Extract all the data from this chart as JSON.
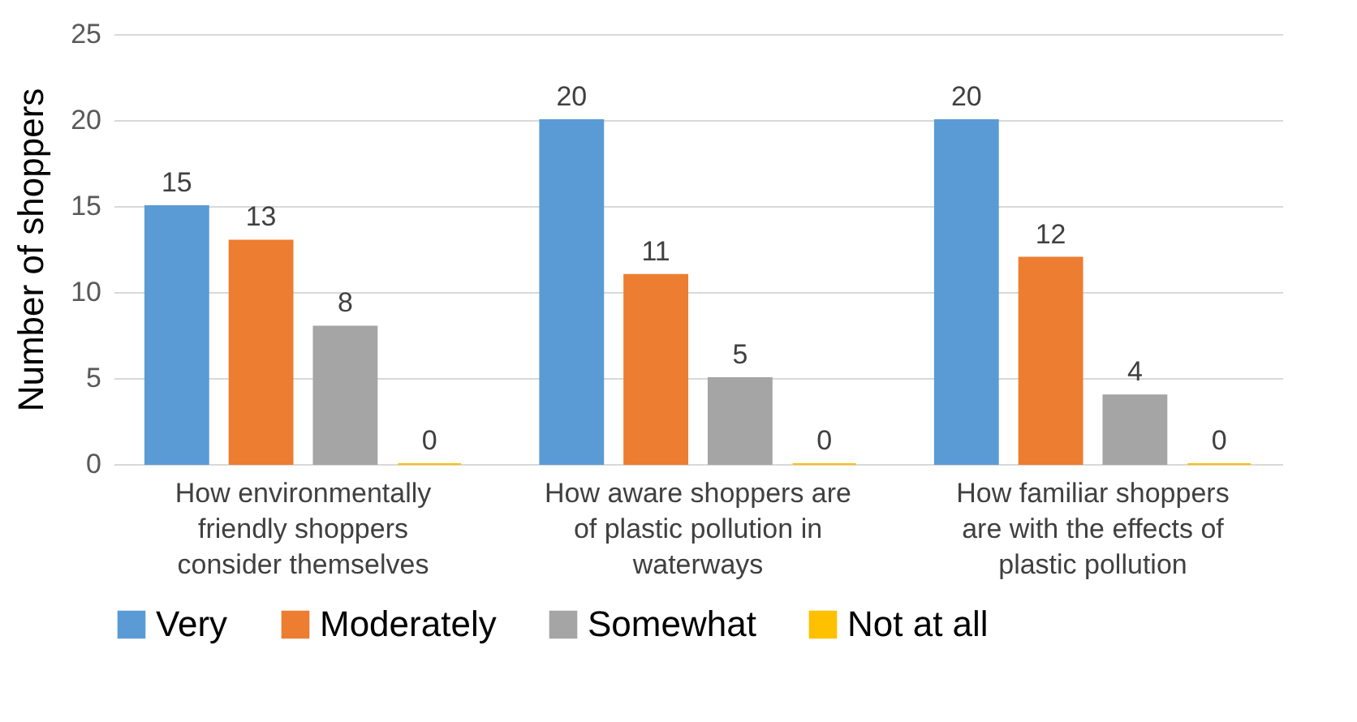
{
  "chart_data": {
    "type": "bar",
    "ylabel": "Number of shoppers",
    "categories": [
      "How environmentally friendly shoppers consider themselves",
      "How aware shoppers are of plastic pollution in waterways",
      "How familiar shoppers are with the effects of plastic pollution"
    ],
    "series": [
      {
        "name": "Very",
        "color": "#5b9bd5",
        "values": [
          15,
          20,
          20
        ]
      },
      {
        "name": "Moderately",
        "color": "#ed7d31",
        "values": [
          13,
          11,
          12
        ]
      },
      {
        "name": "Somewhat",
        "color": "#a5a5a5",
        "values": [
          8,
          5,
          4
        ]
      },
      {
        "name": "Not at all",
        "color": "#ffc000",
        "values": [
          0,
          0,
          0
        ]
      }
    ],
    "ylim": [
      0,
      25
    ],
    "yticks": [
      0,
      5,
      10,
      15,
      20,
      25
    ],
    "grid": "y",
    "legend": "bottom",
    "data_labels": true
  }
}
